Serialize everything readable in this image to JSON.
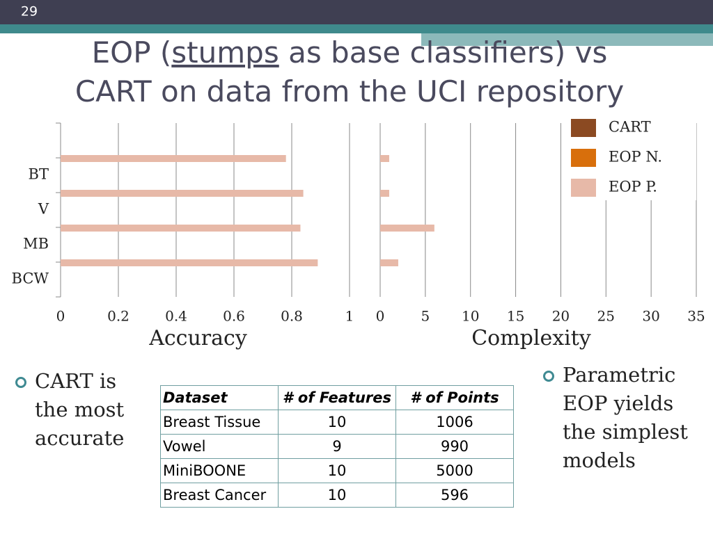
{
  "slide_number": "29",
  "title": {
    "before": "EOP (",
    "underlined": "stumps",
    "after": " as base classifiers) vs",
    "line2": "CART on data from the UCI repository"
  },
  "chart_data": [
    {
      "type": "bar",
      "orientation": "horizontal",
      "x_label": "Accuracy",
      "categories": [
        "BT",
        "V",
        "MB",
        "BCW"
      ],
      "series": [
        {
          "name": "CART",
          "color": "#8b4a22",
          "values": [
            null,
            null,
            null,
            null
          ]
        },
        {
          "name": "EOP N.",
          "color": "#d86f0c",
          "values": [
            null,
            null,
            null,
            null
          ]
        },
        {
          "name": "EOP P.",
          "color": "#e7b9a8",
          "values": [
            0.78,
            0.84,
            0.83,
            0.89
          ]
        }
      ],
      "xlim": [
        0,
        1
      ],
      "xticks": [
        0,
        0.2,
        0.4,
        0.6,
        0.8,
        1
      ],
      "grid": true
    },
    {
      "type": "bar",
      "orientation": "horizontal",
      "x_label": "Complexity",
      "series": [
        {
          "color": "#8b4a22",
          "values": [
            null,
            null,
            null,
            null
          ]
        },
        {
          "color": "#d86f0c",
          "values": [
            null,
            null,
            null,
            null
          ]
        },
        {
          "color": "#e7b9a8",
          "values": [
            1,
            1,
            6,
            2
          ]
        }
      ],
      "xlim": [
        0,
        35
      ],
      "xticks": [
        0,
        5,
        10,
        15,
        20,
        25,
        30,
        35
      ],
      "grid": true
    }
  ],
  "left_bullet": "CART is the most accurate",
  "right_bullet": "Parametric EOP yields the simplest models",
  "table": {
    "header": [
      "Dataset",
      "# of Features",
      "# of Points"
    ],
    "rows": [
      [
        "Breast Tissue",
        "10",
        "1006"
      ],
      [
        "Vowel",
        "9",
        "990"
      ],
      [
        "MiniBOONE",
        "10",
        "5000"
      ],
      [
        "Breast Cancer",
        "10",
        "596"
      ]
    ]
  }
}
